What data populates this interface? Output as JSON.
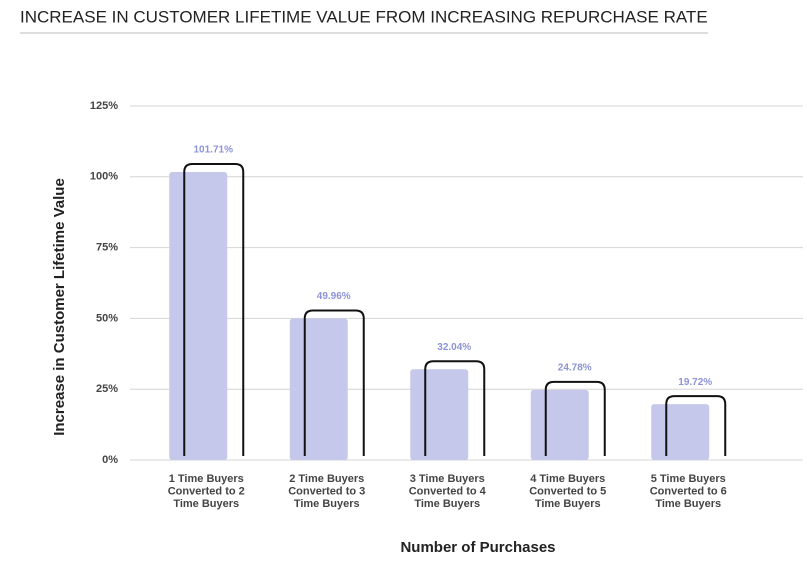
{
  "chart_data": {
    "type": "bar",
    "title": "INCREASE IN CUSTOMER LIFETIME VALUE FROM INCREASING REPURCHASE RATE",
    "x_label": "Number of Purchases",
    "y_label": "Increase in Customer Lifetime Value",
    "categories": [
      [
        "1 Time Buyers",
        "Converted to 2",
        "Time Buyers"
      ],
      [
        "2 Time Buyers",
        "Converted to 3",
        "Time Buyers"
      ],
      [
        "3 Time Buyers",
        "Converted to 4",
        "Time Buyers"
      ],
      [
        "4 Time Buyers",
        "Converted to 5",
        "Time Buyers"
      ],
      [
        "5 Time Buyers",
        "Converted to 6",
        "Time Buyers"
      ]
    ],
    "values": [
      101.71,
      49.96,
      32.04,
      24.78,
      19.72
    ],
    "value_labels": [
      "101.71%",
      "49.96%",
      "32.04%",
      "24.78%",
      "19.72%"
    ],
    "color": "#c5c8ea",
    "ylim": [
      0,
      125
    ],
    "yticks": [
      {
        "value": 0,
        "label": "0%"
      },
      {
        "value": 25,
        "label": "25%"
      },
      {
        "value": 50,
        "label": "50%"
      },
      {
        "value": 75,
        "label": "75%"
      },
      {
        "value": 100,
        "label": "100%"
      },
      {
        "value": 125,
        "label": "125%"
      }
    ],
    "grid": true
  }
}
